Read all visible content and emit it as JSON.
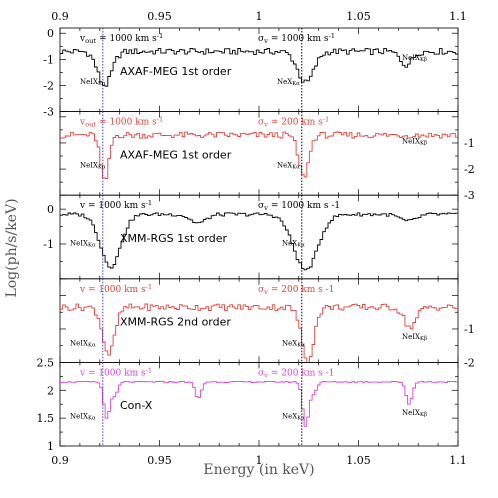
{
  "chart_data": {
    "type": "line",
    "xlabel": "Energy (in keV)",
    "ylabel": "Log(ph/s/keV)",
    "xlim": [
      0.9,
      1.1
    ],
    "x_ticks": [
      "0.9",
      "0.95",
      "1",
      "1.05",
      "1.1"
    ],
    "vlines": [
      0.9215,
      1.0215
    ],
    "panels": [
      {
        "name": "AXAF-MEG 1st order",
        "color": "#000000",
        "ylim": [
          -3,
          0.2
        ],
        "y_ticks": [
          0,
          -1,
          -2,
          -3
        ],
        "y_tick_labels": [
          "0",
          "-1",
          "-2",
          "-3"
        ],
        "tick_side": "left",
        "anno_left": "v_out = 1000 km s^-1",
        "anno_right": "σ_v = 1000 km s^-1",
        "line_labels": [
          "NeIX_Kα",
          "NeX_Kα",
          "NeIX_Kβ"
        ],
        "baseline": -0.7,
        "jitter": 0.12,
        "absorptions": [
          {
            "x": 0.9225,
            "depth": 1.3,
            "width": 0.0035
          },
          {
            "x": 1.0235,
            "depth": 1.2,
            "width": 0.004
          },
          {
            "x": 1.074,
            "depth": 0.5,
            "width": 0.003
          }
        ]
      },
      {
        "name": "AXAF-MEG 1st order",
        "color": "#e8413a",
        "ylim": [
          -3,
          0.2
        ],
        "y_ticks": [
          -1,
          -2,
          -3
        ],
        "y_tick_labels": [
          "-1",
          "-2",
          "-3"
        ],
        "tick_side": "right",
        "anno_left": "v_out = 1000 km s^-1",
        "anno_right": "σ_v = 200 km s^-1",
        "line_labels": [
          "NeIX_Kα",
          "NeX_Kα",
          "NeIX_Kβ"
        ],
        "baseline": -0.7,
        "jitter": 0.12,
        "absorptions": [
          {
            "x": 0.9225,
            "depth": 1.8,
            "width": 0.002
          },
          {
            "x": 1.0225,
            "depth": 1.6,
            "width": 0.0025
          }
        ]
      },
      {
        "name": "XMM-RGS 1st order",
        "color": "#000000",
        "ylim": [
          -2,
          0.4
        ],
        "y_ticks": [
          0,
          -1
        ],
        "y_tick_labels": [
          "0",
          "-1"
        ],
        "tick_side": "left",
        "anno_left": "v = 1000 km s^-1",
        "anno_right": "σ_v = 1000 km s -1",
        "line_labels": [
          "NeIX_Kα",
          "NeX_Kα"
        ],
        "baseline": -0.15,
        "jitter": 0.05,
        "absorptions": [
          {
            "x": 0.9255,
            "depth": 1.5,
            "width": 0.005
          },
          {
            "x": 1.0235,
            "depth": 1.6,
            "width": 0.006
          },
          {
            "x": 0.9695,
            "depth": 0.25,
            "width": 0.004
          },
          {
            "x": 1.075,
            "depth": 0.2,
            "width": 0.004
          }
        ]
      },
      {
        "name": "XMM-RGS 2nd order",
        "color": "#e8413a",
        "ylim": [
          -2,
          0.5
        ],
        "y_ticks": [
          -1,
          -2
        ],
        "y_tick_labels": [
          "-1",
          "-2"
        ],
        "tick_side": "right",
        "anno_left": "v = 1000 km s^-1",
        "anno_right": "σ_v = 200 km s -1",
        "line_labels": [
          "NeIX_Kα",
          "NeX_Kα",
          "NeIX_Kβ"
        ],
        "baseline": -0.35,
        "jitter": 0.1,
        "absorptions": [
          {
            "x": 0.9245,
            "depth": 1.4,
            "width": 0.003
          },
          {
            "x": 1.0245,
            "depth": 1.6,
            "width": 0.003
          },
          {
            "x": 1.076,
            "depth": 0.6,
            "width": 0.003
          }
        ]
      },
      {
        "name": "Con-X",
        "color": "#e040e0",
        "ylim": [
          1,
          2.5
        ],
        "y_ticks": [
          2.5,
          2,
          1.5,
          1
        ],
        "y_tick_labels": [
          "2.5",
          "2",
          "1.5",
          "1"
        ],
        "tick_side": "left",
        "anno_left": "v = 1000 km s^-1",
        "anno_right": "σ_v = 200 km s -1",
        "line_labels": [
          "NeIX_Kα",
          "NeX_Kα",
          "NeIX_Kβ"
        ],
        "baseline": 2.15,
        "jitter": 0.01,
        "absorptions": [
          {
            "x": 0.9235,
            "depth": 0.65,
            "width": 0.0015
          },
          {
            "x": 1.0235,
            "depth": 0.8,
            "width": 0.0015
          },
          {
            "x": 0.9275,
            "depth": 0.25,
            "width": 0.0015
          },
          {
            "x": 0.9695,
            "depth": 0.3,
            "width": 0.0015
          },
          {
            "x": 1.0755,
            "depth": 0.4,
            "width": 0.0015
          },
          {
            "x": 1.0275,
            "depth": 0.2,
            "width": 0.0015
          }
        ]
      }
    ]
  }
}
